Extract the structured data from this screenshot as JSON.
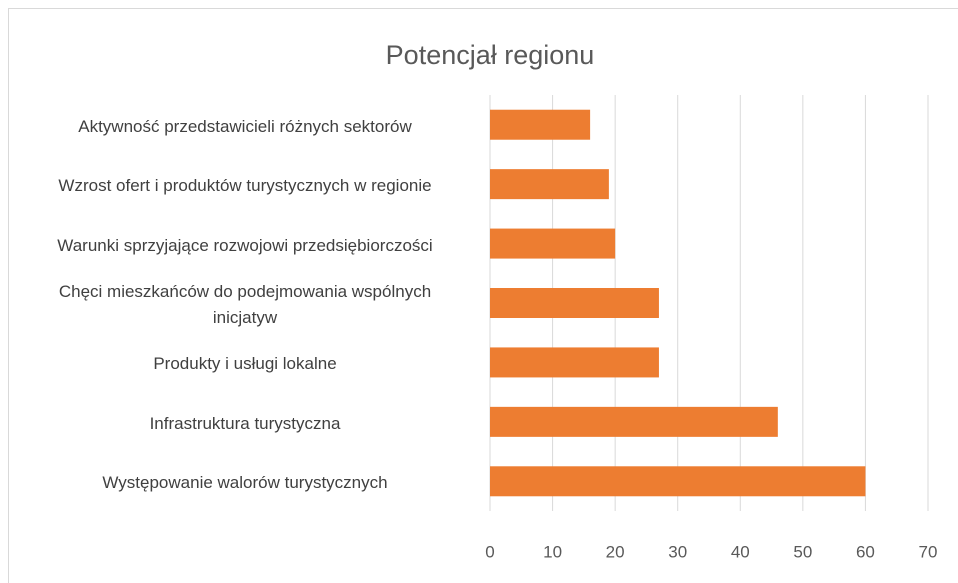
{
  "chart_data": {
    "type": "bar",
    "orientation": "horizontal",
    "title": "Potencjał regionu",
    "categories": [
      "Aktywność przedstawicieli różnych sektorów",
      "Wzrost ofert i produktów turystycznych w regionie",
      "Warunki sprzyjające rozwojowi przedsiębiorczości",
      "Chęci mieszkańców do podejmowania wspólnych inicjatyw",
      "Produkty i usługi lokalne",
      "Infrastruktura turystyczna",
      "Występowanie walorów turystycznych"
    ],
    "values": [
      16,
      19,
      20,
      27,
      27,
      46,
      60
    ],
    "color": "#ed7d31",
    "xlim": [
      0,
      70
    ],
    "xticks": [
      0,
      10,
      20,
      30,
      40,
      50,
      60,
      70
    ],
    "grid": true
  }
}
